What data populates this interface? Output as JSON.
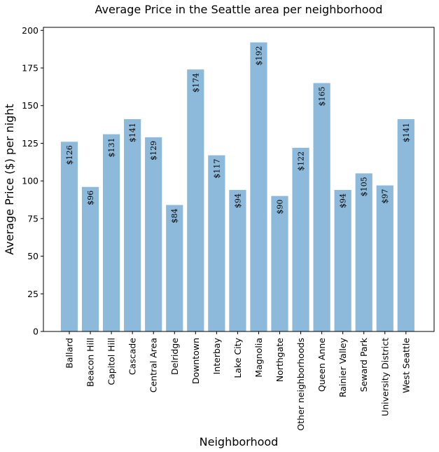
{
  "chart_data": {
    "type": "bar",
    "title": "Average Price in the Seattle area per neighborhood",
    "xlabel": "Neighborhood",
    "ylabel": "Average Price ($) per night",
    "ylim": [
      0,
      202
    ],
    "yticks": [
      0,
      25,
      50,
      75,
      100,
      125,
      150,
      175,
      200
    ],
    "grid": false,
    "bar_color": "#8db9da",
    "categories": [
      "Ballard",
      "Beacon Hill",
      "Capitol Hill",
      "Cascade",
      "Central Area",
      "Delridge",
      "Downtown",
      "Interbay",
      "Lake City",
      "Magnolia",
      "Northgate",
      "Other neighborhoods",
      "Queen Anne",
      "Rainier Valley",
      "Seward Park",
      "University District",
      "West Seattle"
    ],
    "values": [
      126,
      96,
      131,
      141,
      129,
      84,
      174,
      117,
      94,
      192,
      90,
      122,
      165,
      94,
      105,
      97,
      141
    ],
    "data_labels": [
      "$126",
      "$96",
      "$131",
      "$141",
      "$129",
      "$84",
      "$174",
      "$117",
      "$94",
      "$192",
      "$90",
      "$122",
      "$165",
      "$94",
      "$105",
      "$97",
      "$141"
    ]
  }
}
